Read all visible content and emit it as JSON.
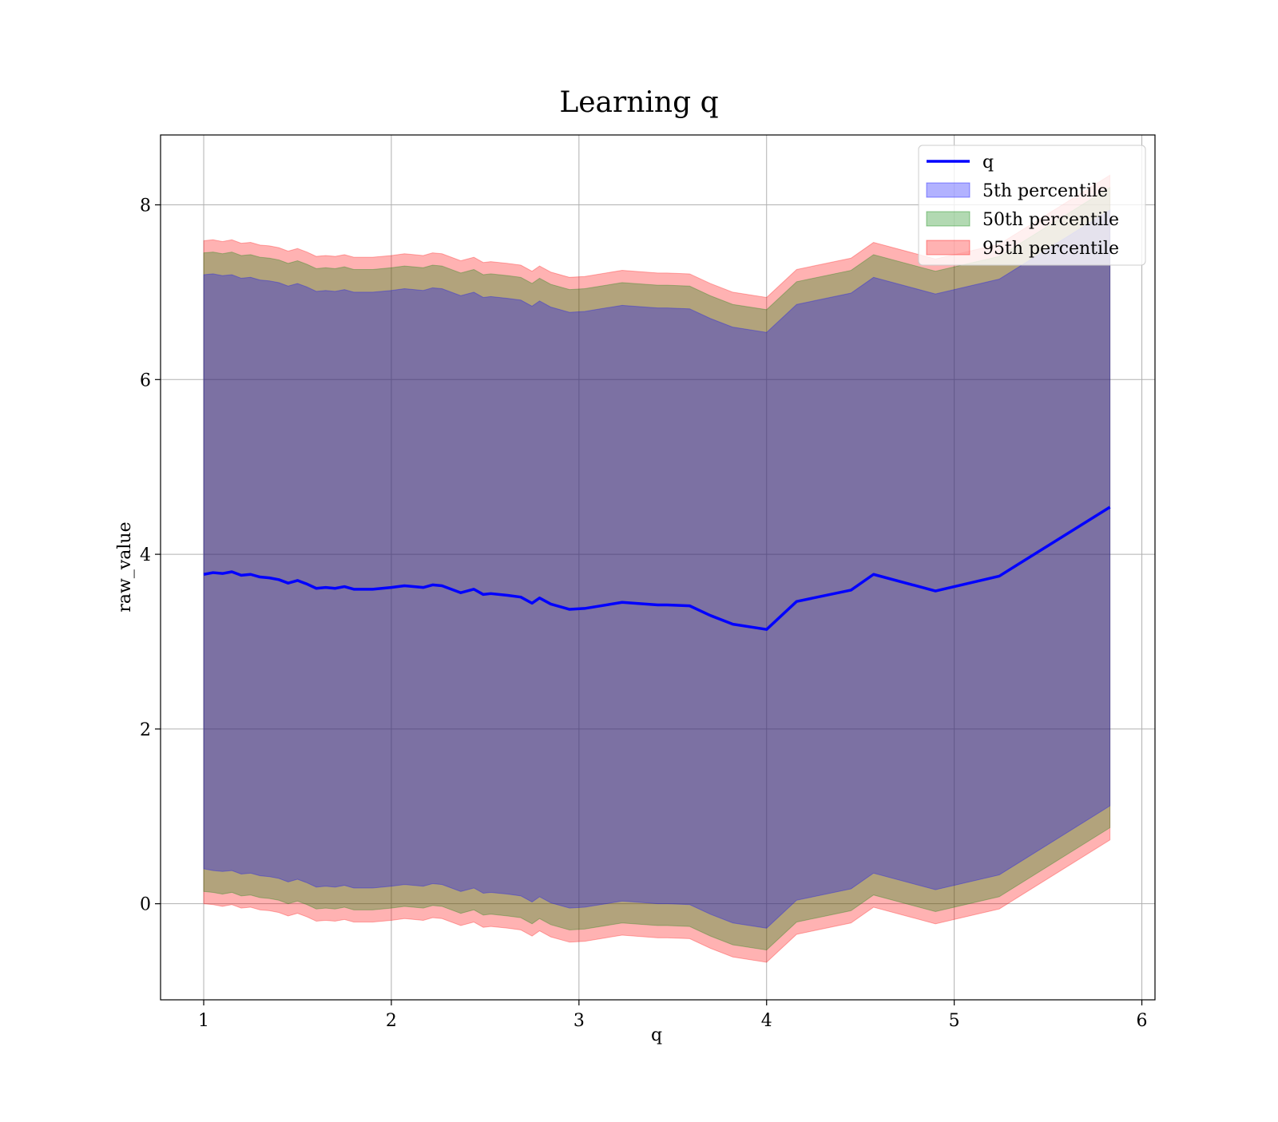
{
  "chart_data": {
    "type": "area",
    "title": "Learning q",
    "xlabel": "q",
    "ylabel": "raw_value",
    "xlim": [
      0.77,
      6.07
    ],
    "ylim": [
      -1.1,
      8.8
    ],
    "xticks": [
      1,
      2,
      3,
      4,
      5,
      6
    ],
    "yticks": [
      0,
      2,
      4,
      6,
      8
    ],
    "grid": true,
    "legend_placement": "top-right",
    "legend": [
      "q",
      "5th percentile",
      "50th percentile",
      "95th percentile"
    ],
    "colors": {
      "line": "#0000ff",
      "band_5th": "#0000ff",
      "band_50th": "#008000",
      "band_95th": "#ff0000",
      "grid": "#b0b0b0"
    },
    "x": [
      1.0,
      1.05,
      1.1,
      1.15,
      1.2,
      1.25,
      1.3,
      1.35,
      1.4,
      1.45,
      1.5,
      1.55,
      1.6,
      1.65,
      1.7,
      1.75,
      1.8,
      1.9,
      2.0,
      2.07,
      2.17,
      2.22,
      2.27,
      2.37,
      2.44,
      2.49,
      2.53,
      2.62,
      2.69,
      2.75,
      2.79,
      2.85,
      2.95,
      3.03,
      3.23,
      3.42,
      3.47,
      3.59,
      3.7,
      3.82,
      4.0,
      4.16,
      4.45,
      4.57,
      4.9,
      5.24,
      5.83
    ],
    "series": [
      {
        "name": "q",
        "values": [
          3.77,
          3.79,
          3.78,
          3.8,
          3.76,
          3.77,
          3.74,
          3.73,
          3.71,
          3.67,
          3.7,
          3.66,
          3.61,
          3.62,
          3.61,
          3.63,
          3.6,
          3.6,
          3.62,
          3.64,
          3.62,
          3.65,
          3.64,
          3.56,
          3.6,
          3.54,
          3.55,
          3.53,
          3.51,
          3.44,
          3.5,
          3.43,
          3.37,
          3.38,
          3.45,
          3.42,
          3.42,
          3.41,
          3.3,
          3.2,
          3.14,
          3.46,
          3.59,
          3.77,
          3.58,
          3.75,
          4.54
        ]
      },
      {
        "name": "5th percentile",
        "lower": [
          0.4,
          0.38,
          0.37,
          0.38,
          0.34,
          0.35,
          0.32,
          0.31,
          0.29,
          0.25,
          0.28,
          0.24,
          0.19,
          0.2,
          0.19,
          0.21,
          0.18,
          0.18,
          0.2,
          0.22,
          0.2,
          0.23,
          0.22,
          0.14,
          0.18,
          0.12,
          0.13,
          0.11,
          0.09,
          0.02,
          0.08,
          0.01,
          -0.05,
          -0.04,
          0.03,
          0.0,
          0.0,
          -0.01,
          -0.12,
          -0.22,
          -0.28,
          0.04,
          0.17,
          0.35,
          0.16,
          0.33,
          1.12
        ],
        "upper": [
          7.2,
          7.21,
          7.19,
          7.2,
          7.16,
          7.17,
          7.14,
          7.13,
          7.11,
          7.07,
          7.1,
          7.06,
          7.01,
          7.02,
          7.01,
          7.03,
          7.0,
          7.0,
          7.02,
          7.04,
          7.02,
          7.05,
          7.04,
          6.96,
          7.0,
          6.94,
          6.95,
          6.93,
          6.91,
          6.84,
          6.9,
          6.83,
          6.77,
          6.78,
          6.85,
          6.82,
          6.82,
          6.81,
          6.7,
          6.6,
          6.54,
          6.86,
          6.99,
          7.17,
          6.98,
          7.15,
          7.94
        ]
      },
      {
        "name": "50th percentile",
        "lower": [
          0.14,
          0.13,
          0.11,
          0.13,
          0.09,
          0.1,
          0.07,
          0.06,
          0.04,
          0.0,
          0.03,
          -0.01,
          -0.06,
          -0.05,
          -0.06,
          -0.04,
          -0.07,
          -0.07,
          -0.05,
          -0.03,
          -0.05,
          -0.02,
          -0.03,
          -0.11,
          -0.07,
          -0.13,
          -0.12,
          -0.14,
          -0.16,
          -0.23,
          -0.17,
          -0.24,
          -0.3,
          -0.29,
          -0.22,
          -0.25,
          -0.25,
          -0.26,
          -0.37,
          -0.47,
          -0.53,
          -0.21,
          -0.08,
          0.1,
          -0.09,
          0.08,
          0.87
        ],
        "upper": [
          7.45,
          7.46,
          7.44,
          7.46,
          7.42,
          7.43,
          7.4,
          7.39,
          7.37,
          7.33,
          7.36,
          7.32,
          7.27,
          7.28,
          7.27,
          7.29,
          7.26,
          7.26,
          7.28,
          7.3,
          7.28,
          7.31,
          7.3,
          7.22,
          7.26,
          7.2,
          7.21,
          7.19,
          7.17,
          7.1,
          7.16,
          7.09,
          7.03,
          7.04,
          7.11,
          7.08,
          7.08,
          7.07,
          6.96,
          6.86,
          6.8,
          7.12,
          7.25,
          7.43,
          7.24,
          7.41,
          8.2
        ]
      },
      {
        "name": "95th percentile",
        "lower": [
          0.0,
          -0.01,
          -0.03,
          -0.01,
          -0.05,
          -0.04,
          -0.07,
          -0.08,
          -0.1,
          -0.14,
          -0.11,
          -0.15,
          -0.2,
          -0.19,
          -0.2,
          -0.18,
          -0.21,
          -0.21,
          -0.19,
          -0.17,
          -0.19,
          -0.16,
          -0.17,
          -0.25,
          -0.21,
          -0.27,
          -0.26,
          -0.28,
          -0.3,
          -0.37,
          -0.31,
          -0.38,
          -0.44,
          -0.43,
          -0.36,
          -0.39,
          -0.39,
          -0.4,
          -0.51,
          -0.61,
          -0.67,
          -0.35,
          -0.22,
          -0.04,
          -0.23,
          -0.06,
          0.73
        ],
        "upper": [
          7.59,
          7.6,
          7.58,
          7.6,
          7.56,
          7.57,
          7.54,
          7.53,
          7.51,
          7.47,
          7.5,
          7.46,
          7.41,
          7.42,
          7.41,
          7.43,
          7.4,
          7.4,
          7.42,
          7.44,
          7.42,
          7.45,
          7.44,
          7.36,
          7.4,
          7.34,
          7.35,
          7.33,
          7.31,
          7.24,
          7.3,
          7.23,
          7.17,
          7.18,
          7.25,
          7.22,
          7.22,
          7.21,
          7.1,
          7.0,
          6.94,
          7.26,
          7.39,
          7.57,
          7.38,
          7.55,
          8.34
        ]
      }
    ]
  }
}
